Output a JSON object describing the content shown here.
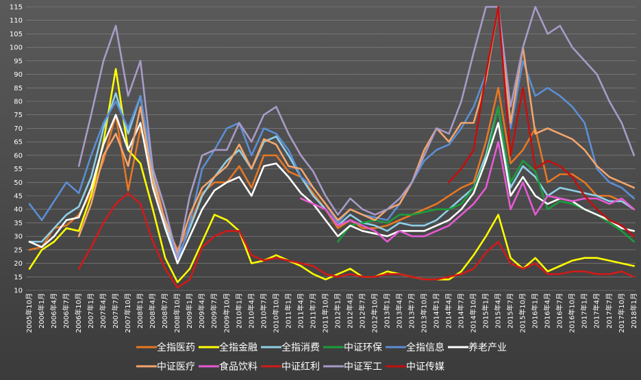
{
  "chart_data": {
    "type": "line",
    "title": "",
    "xlabel": "",
    "ylabel": "",
    "ylim": [
      10,
      115
    ],
    "yticks": [
      10,
      15,
      20,
      25,
      30,
      35,
      40,
      45,
      50,
      55,
      60,
      65,
      70,
      75,
      80,
      85,
      90,
      95,
      100,
      105,
      110,
      115
    ],
    "grid": "horizontal",
    "legend_position": "bottom",
    "x_tick_labels": [
      "2005年10月",
      "2006年1月",
      "2006年4月",
      "2006年7月",
      "2006年10月",
      "2007年1月",
      "2007年4月",
      "2007年7月",
      "2007年10月",
      "2008年1月",
      "2008年4月",
      "2008年7月",
      "2008年10月",
      "2009年1月",
      "2009年4月",
      "2009年7月",
      "2009年10月",
      "2010年1月",
      "2010年4月",
      "2010年7月",
      "2010年10月",
      "2011年1月",
      "2011年4月",
      "2011年7月",
      "2011年10月",
      "2012年1月",
      "2012年4月",
      "2012年7月",
      "2012年10月",
      "2013年1月",
      "2013年4月",
      "2013年7月",
      "2013年10月",
      "2014年1月",
      "2014年4月",
      "2014年7月",
      "2014年10月",
      "2015年1月",
      "2015年4月",
      "2015年7月",
      "2015年10月",
      "2016年1月",
      "2016年4月",
      "2016年7月",
      "2016年10月",
      "2017年1月",
      "2017年4月",
      "2017年7月",
      "2017年10月",
      "2018年1月"
    ],
    "series": [
      {
        "name": "全指医药",
        "color": "#e87722",
        "values": [
          25,
          26,
          33,
          34,
          38,
          46,
          58,
          75,
          47,
          70,
          55,
          35,
          25,
          34,
          46,
          50,
          50,
          56,
          48,
          60,
          60,
          54,
          52,
          46,
          40,
          33,
          36,
          33,
          33,
          34,
          36,
          38,
          40,
          42,
          45,
          48,
          50,
          65,
          85,
          57,
          62,
          70,
          50,
          53,
          53,
          50,
          45,
          45,
          43,
          40
        ]
      },
      {
        "name": "全指金融",
        "color": "#ffff00",
        "values": [
          18,
          25,
          28,
          33,
          32,
          45,
          65,
          92,
          62,
          57,
          40,
          22,
          13,
          18,
          28,
          38,
          36,
          32,
          20,
          21,
          23,
          21,
          19,
          16,
          14,
          16,
          18,
          15,
          15,
          17,
          16,
          15,
          14,
          14,
          14,
          17,
          23,
          30,
          38,
          22,
          18,
          22,
          17,
          19,
          21,
          22,
          22,
          21,
          20,
          19
        ]
      },
      {
        "name": "全指消费",
        "color": "#8fd0e8",
        "values": [
          28,
          28,
          33,
          38,
          41,
          52,
          70,
          83,
          68,
          82,
          52,
          35,
          22,
          33,
          45,
          52,
          58,
          62,
          55,
          65,
          67,
          60,
          52,
          45,
          40,
          34,
          38,
          35,
          34,
          32,
          35,
          34,
          34,
          36,
          40,
          44,
          48,
          60,
          78,
          48,
          56,
          52,
          45,
          48,
          47,
          46,
          45,
          43,
          43,
          40
        ]
      },
      {
        "name": "中证环保",
        "color": "#1a9e3c",
        "values": [
          null,
          null,
          null,
          null,
          null,
          null,
          null,
          null,
          null,
          null,
          null,
          null,
          null,
          null,
          null,
          null,
          null,
          null,
          null,
          null,
          null,
          null,
          null,
          null,
          null,
          28,
          34,
          35,
          36,
          35,
          38,
          38,
          39,
          40,
          40,
          42,
          48,
          58,
          78,
          50,
          58,
          54,
          40,
          43,
          42,
          40,
          38,
          35,
          32,
          28
        ]
      },
      {
        "name": "全指信息",
        "color": "#5b8fd6",
        "values": [
          42,
          36,
          43,
          50,
          46,
          60,
          72,
          80,
          70,
          82,
          55,
          40,
          20,
          35,
          55,
          62,
          70,
          72,
          60,
          70,
          68,
          62,
          52,
          48,
          42,
          35,
          40,
          38,
          37,
          36,
          42,
          50,
          58,
          62,
          64,
          70,
          78,
          90,
          115,
          70,
          95,
          82,
          85,
          82,
          78,
          72,
          55,
          50,
          48,
          44
        ]
      },
      {
        "name": "养老产业",
        "color": "#ffffff",
        "values": [
          28,
          26,
          30,
          36,
          37,
          48,
          64,
          75,
          62,
          72,
          48,
          33,
          20,
          30,
          40,
          47,
          50,
          52,
          45,
          56,
          57,
          52,
          46,
          42,
          36,
          30,
          34,
          32,
          31,
          30,
          32,
          32,
          32,
          34,
          36,
          40,
          46,
          58,
          72,
          45,
          52,
          45,
          42,
          44,
          43,
          40,
          38,
          36,
          33,
          32
        ]
      },
      {
        "name": "中证医疗",
        "color": "#f5a56b",
        "values": [
          null,
          null,
          null,
          null,
          30,
          42,
          60,
          68,
          56,
          78,
          50,
          36,
          24,
          38,
          48,
          52,
          56,
          64,
          55,
          66,
          64,
          56,
          55,
          48,
          42,
          36,
          40,
          38,
          36,
          40,
          42,
          50,
          62,
          70,
          65,
          72,
          72,
          88,
          115,
          72,
          100,
          68,
          70,
          68,
          66,
          62,
          56,
          52,
          50,
          48
        ]
      },
      {
        "name": "食品饮料",
        "color": "#e55ad4",
        "values": [
          null,
          null,
          null,
          null,
          null,
          null,
          null,
          null,
          null,
          null,
          null,
          null,
          null,
          null,
          null,
          null,
          null,
          null,
          null,
          null,
          null,
          null,
          44,
          42,
          40,
          34,
          36,
          34,
          32,
          28,
          32,
          30,
          30,
          32,
          34,
          38,
          42,
          48,
          65,
          40,
          50,
          38,
          45,
          44,
          43,
          44,
          44,
          42,
          44,
          40
        ]
      },
      {
        "name": "中证红利",
        "color": "#d11a1a",
        "values": [
          null,
          null,
          null,
          null,
          18,
          26,
          35,
          42,
          46,
          42,
          28,
          18,
          11,
          14,
          26,
          30,
          32,
          32,
          23,
          21,
          22,
          21,
          20,
          19,
          16,
          15,
          16,
          15,
          15,
          16,
          16,
          15,
          14,
          14,
          15,
          16,
          18,
          24,
          28,
          20,
          18,
          20,
          16,
          16,
          17,
          17,
          16,
          16,
          17,
          15
        ]
      },
      {
        "name": "中证军工",
        "color": "#a89bc8",
        "values": [
          null,
          null,
          null,
          null,
          56,
          75,
          95,
          108,
          82,
          95,
          55,
          40,
          22,
          45,
          60,
          62,
          62,
          72,
          65,
          75,
          78,
          68,
          60,
          54,
          45,
          38,
          44,
          40,
          38,
          40,
          44,
          50,
          60,
          70,
          68,
          80,
          98,
          115,
          115,
          78,
          100,
          115,
          105,
          108,
          100,
          95,
          90,
          80,
          72,
          60
        ]
      },
      {
        "name": "中证传媒",
        "color": "#c40f0f",
        "values": [
          null,
          null,
          null,
          null,
          null,
          null,
          null,
          null,
          null,
          null,
          null,
          null,
          null,
          null,
          null,
          null,
          null,
          null,
          null,
          null,
          null,
          null,
          null,
          null,
          null,
          null,
          null,
          null,
          null,
          null,
          null,
          null,
          null,
          null,
          50,
          55,
          62,
          90,
          115,
          60,
          85,
          55,
          58,
          56,
          52,
          45,
          40,
          36,
          34,
          30
        ]
      }
    ]
  }
}
